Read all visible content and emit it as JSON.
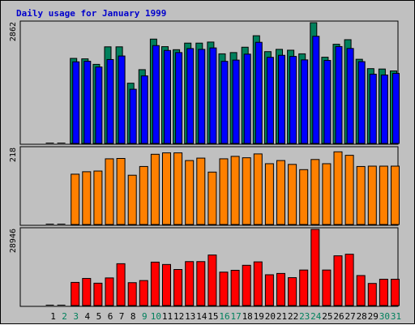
{
  "chart_data": {
    "type": "bar",
    "title": "Daily usage for January 1999",
    "x": [
      "1",
      "2",
      "3",
      "4",
      "5",
      "6",
      "7",
      "8",
      "9",
      "10",
      "11",
      "12",
      "13",
      "14",
      "15",
      "16",
      "17",
      "18",
      "19",
      "20",
      "21",
      "22",
      "23",
      "24",
      "25",
      "26",
      "27",
      "28",
      "29",
      "30",
      "31"
    ],
    "weekend_days": [
      2,
      3,
      9,
      10,
      16,
      17,
      23,
      24,
      30,
      31
    ],
    "colors": {
      "background": "#c0c0c0",
      "title": "#0000cc",
      "weekday_label": "#000000",
      "weekend_label": "#00805c",
      "hits": "#00805c",
      "files": "#0000ff",
      "pages": "#ff8000",
      "sites": "#ff0000"
    },
    "panels": [
      {
        "id": "hits-files",
        "max_label": "2862",
        "max": 2862,
        "series": [
          {
            "id": "hits",
            "color": "#00805c",
            "values": [
              0,
              0,
              2016,
              2005,
              1875,
              2290,
              2290,
              1428,
              1749,
              2473,
              2294,
              2222,
              2378,
              2378,
              2403,
              2124,
              2154,
              2281,
              2553,
              2176,
              2230,
              2210,
              2124,
              2862,
              2044,
              2351,
              2459,
              1995,
              1773,
              1764,
              1719
            ]
          },
          {
            "id": "files",
            "color": "#0000ff",
            "values": [
              0,
              0,
              1935,
              1948,
              1812,
              1989,
              2073,
              1285,
              1601,
              2320,
              2204,
              2154,
              2249,
              2230,
              2264,
              1946,
              1976,
              2117,
              2397,
              2041,
              2089,
              2063,
              1981,
              2540,
              1968,
              2297,
              2251,
              1939,
              1642,
              1622,
              1660
            ]
          }
        ]
      },
      {
        "id": "pages",
        "max_label": "218",
        "max": 218,
        "series": [
          {
            "id": "pages",
            "color": "#ff8000",
            "values": [
              0,
              0,
              144,
              151,
              153,
              188,
              189,
              141,
              166,
              201,
              205,
              205,
              183,
              190,
              150,
              188,
              195,
              191,
              202,
              174,
              183,
              172,
              157,
              186,
              174,
              208,
              198,
              166,
              167,
              167,
              167
            ]
          }
        ]
      },
      {
        "id": "sites",
        "max_label": "28946",
        "max": 28946,
        "series": [
          {
            "id": "sites",
            "color": "#ff0000",
            "values": [
              0,
              0,
              8800,
              10300,
              8500,
              10500,
              15900,
              8700,
              9500,
              16500,
              15600,
              13700,
              16700,
              16700,
              19200,
              12700,
              13400,
              15300,
              16600,
              11700,
              12200,
              10600,
              13500,
              28946,
              13500,
              18900,
              19500,
              11400,
              8400,
              10000,
              10000
            ]
          }
        ]
      }
    ]
  }
}
